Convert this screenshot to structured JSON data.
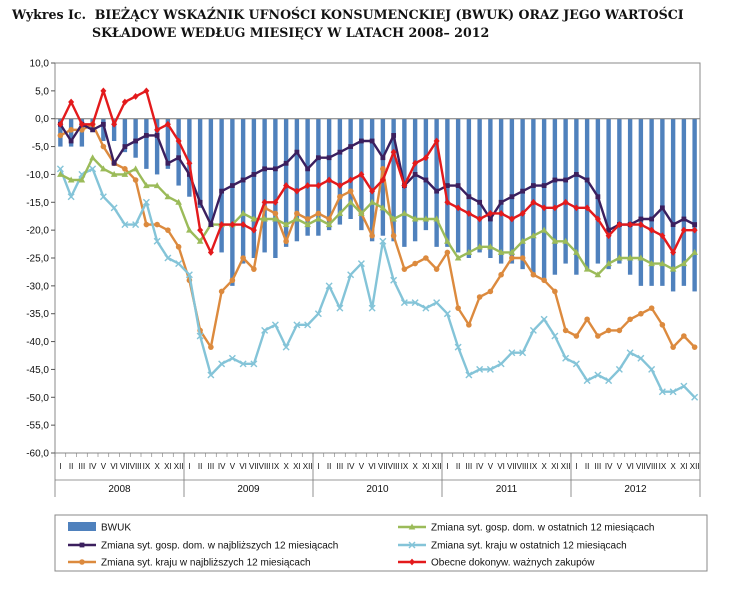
{
  "header": {
    "prefix": "Wykres Ic.",
    "title_line1": "BIEŻĄCY WSKAŹNIK UFNOŚCI KONSUMENCKIEJ (BWUK) ORAZ JEGO WARTOŚCI",
    "title_line2": "SKŁADOWE WEDŁUG MIESIĘCY W LATACH 2008– 2012"
  },
  "chart_data": {
    "type": "bar",
    "title": "BIEŻĄCY WSKAŹNIK UFNOŚCI KONSUMENCKIEJ (BWUK) ORAZ JEGO WARTOŚCI SKŁADOWE WEDŁUG MIESIĘCY W LATACH 2008– 2012",
    "ylim": [
      -60,
      10
    ],
    "y_ticks": [
      "10,0",
      "5,0",
      "0,0",
      "-5,0",
      "-10,0",
      "-15,0",
      "-20,0",
      "-25,0",
      "-30,0",
      "-35,0",
      "-40,0",
      "-45,0",
      "-50,0",
      "-55,0",
      "-60,0"
    ],
    "months": [
      "I",
      "II",
      "III",
      "IV",
      "V",
      "VI",
      "VII",
      "VIII",
      "IX",
      "X",
      "XI",
      "XII"
    ],
    "years": [
      "2008",
      "2009",
      "2010",
      "2011",
      "2012"
    ],
    "grid": false,
    "legend_position": "bottom",
    "series": [
      {
        "name": "BWUK",
        "kind": "bar",
        "color": "#4f81bd",
        "values": [
          -5,
          -5,
          -5,
          -2,
          -4,
          -4,
          -6,
          -7,
          -9,
          -10,
          -9,
          -12,
          -14,
          -16,
          -19,
          -24,
          -30,
          -26,
          -25,
          -24,
          -25,
          -23,
          -22,
          -21,
          -21,
          -20,
          -19,
          -18,
          -20,
          -22,
          -21,
          -22,
          -23,
          -22,
          -20,
          -23,
          -23,
          -24,
          -25,
          -24,
          -25,
          -26,
          -26,
          -27,
          -28,
          -29,
          -28,
          -26,
          -28,
          -27,
          -26,
          -27,
          -26,
          -28,
          -30,
          -30,
          -30,
          -31,
          -30,
          -31
        ]
      },
      {
        "name": "Zmiana syt. gosp. dom. w najbliższych 12 miesiącach",
        "kind": "line",
        "color": "#3b1f5e",
        "marker": "square",
        "values": [
          -1,
          -4,
          -1,
          -2,
          -1,
          -8,
          -5,
          -4,
          -3,
          -3,
          -8,
          -7,
          -10,
          -15,
          -19,
          -13,
          -12,
          -11,
          -10,
          -9,
          -9,
          -8,
          -6,
          -9,
          -7,
          -7,
          -6,
          -5,
          -4,
          -4,
          -7,
          -3,
          -12,
          -10,
          -11,
          -13,
          -12,
          -12,
          -14,
          -15,
          -18,
          -15,
          -14,
          -13,
          -12,
          -12,
          -11,
          -11,
          -10,
          -11,
          -14,
          -20,
          -19,
          -19,
          -18,
          -18,
          -16,
          -19,
          -18,
          -19
        ]
      },
      {
        "name": "Zmiana syt. gosp. dom. w ostatnich 12 miesiącach",
        "kind": "line",
        "color": "#9bbb59",
        "marker": "triangle",
        "values": [
          -10,
          -11,
          -11,
          -7,
          -9,
          -10,
          -10,
          -9,
          -12,
          -12,
          -14,
          -15,
          -20,
          -22,
          -19,
          -19,
          -19,
          -17,
          -18,
          -18,
          -18,
          -19,
          -18,
          -19,
          -18,
          -19,
          -17,
          -15,
          -17,
          -15,
          -16,
          -18,
          -17,
          -18,
          -18,
          -18,
          -22,
          -25,
          -24,
          -23,
          -23,
          -24,
          -24,
          -22,
          -21,
          -20,
          -22,
          -22,
          -24,
          -27,
          -28,
          -26,
          -25,
          -25,
          -25,
          -26,
          -26,
          -27,
          -26,
          -24
        ]
      },
      {
        "name": "Zmiana syt. kraju w ostatnich 12 miesiącach",
        "kind": "line",
        "color": "#84c4d8",
        "marker": "x",
        "values": [
          -9,
          -14,
          -10,
          -9,
          -14,
          -16,
          -19,
          -19,
          -15,
          -22,
          -25,
          -26,
          -28,
          -39,
          -46,
          -44,
          -43,
          -44,
          -44,
          -38,
          -37,
          -41,
          -37,
          -37,
          -35,
          -30,
          -34,
          -28,
          -26,
          -34,
          -22,
          -29,
          -33,
          -33,
          -34,
          -33,
          -35,
          -41,
          -46,
          -45,
          -45,
          -44,
          -42,
          -42,
          -38,
          -36,
          -39,
          -43,
          -44,
          -47,
          -46,
          -47,
          -45,
          -42,
          -43,
          -45,
          -49,
          -49,
          -48,
          -50
        ]
      },
      {
        "name": "Zmiana syt. kraju w najbliższych 12 miesiącach",
        "kind": "line",
        "color": "#dc8a3e",
        "marker": "circle",
        "values": [
          -3,
          -2,
          -2,
          -1,
          -5,
          -8,
          -9,
          -11,
          -19,
          -19,
          -20,
          -23,
          -29,
          -38,
          -41,
          -31,
          -29,
          -25,
          -27,
          -16,
          -17,
          -22,
          -17,
          -18,
          -17,
          -18,
          -14,
          -13,
          -17,
          -21,
          -9,
          -21,
          -27,
          -26,
          -25,
          -27,
          -24,
          -34,
          -37,
          -32,
          -31,
          -28,
          -25,
          -25,
          -28,
          -29,
          -31,
          -38,
          -39,
          -36,
          -39,
          -38,
          -38,
          -36,
          -35,
          -34,
          -37,
          -41,
          -39,
          -41
        ]
      },
      {
        "name": "Obecne dokonyw. ważnych zakupów",
        "kind": "line",
        "color": "#e31a1c",
        "marker": "diamond",
        "values": [
          -1,
          3,
          -1,
          -1,
          5,
          -1,
          3,
          4,
          5,
          -2,
          -1,
          -4,
          -8,
          -20,
          -24,
          -19,
          -19,
          -19,
          -20,
          -15,
          -15,
          -12,
          -13,
          -12,
          -12,
          -11,
          -12,
          -11,
          -10,
          -13,
          -11,
          -6,
          -12,
          -8,
          -7,
          -4,
          -15,
          -16,
          -17,
          -18,
          -17,
          -17,
          -18,
          -17,
          -15,
          -16,
          -16,
          -15,
          -16,
          -16,
          -18,
          -21,
          -19,
          -19,
          -19,
          -20,
          -21,
          -24,
          -20,
          -20
        ]
      }
    ]
  }
}
